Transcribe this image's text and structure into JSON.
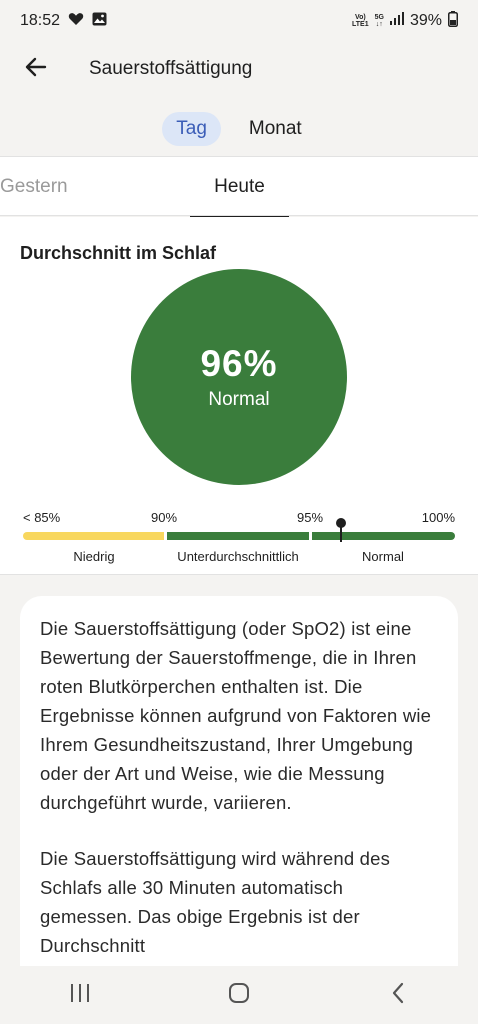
{
  "status_bar": {
    "time": "18:52",
    "battery": "39%",
    "net_top": "Vo)",
    "net_bottom": "LTE1",
    "gen_top": "5G",
    "gen_bottom": "↓↑"
  },
  "header": {
    "title": "Sauerstoffsättigung"
  },
  "period_toggle": {
    "day": "Tag",
    "month": "Monat",
    "selected": "Tag"
  },
  "day_tabs": {
    "previous": "Gestern",
    "current": "Heute"
  },
  "summary": {
    "title": "Durchschnitt im Schlaf",
    "value": "96%",
    "status": "Normal",
    "value_percent": 96,
    "ring_color": "#3a7d3c"
  },
  "scale": {
    "ticks": [
      "< 85%",
      "90%",
      "95%",
      "100%"
    ],
    "zones": [
      "Niedrig",
      "Unterdurchschnittlich",
      "Normal"
    ],
    "zone_colors": [
      "#f8d75e",
      "#3a7d3c",
      "#3a7d3c"
    ]
  },
  "info": {
    "paragraph1": "Die Sauerstoffsättigung (oder SpO2) ist eine Bewertung der Sauerstoffmenge, die in Ihren roten Blutkörperchen enthalten ist. Die Ergebnisse können aufgrund von Faktoren wie Ihrem Gesundheitszustand, Ihrer Umgebung oder der Art und Weise, wie die Messung durchgeführt wurde, variieren.",
    "paragraph2": "Die Sauerstoffsättigung wird während des Schlafs alle 30 Minuten automatisch gemessen. Das obige Ergebnis ist der Durchschnitt"
  },
  "icons": {
    "back": "arrow-left-icon",
    "recents": "recents-icon",
    "home": "home-icon",
    "nav_back": "chevron-left-icon"
  }
}
